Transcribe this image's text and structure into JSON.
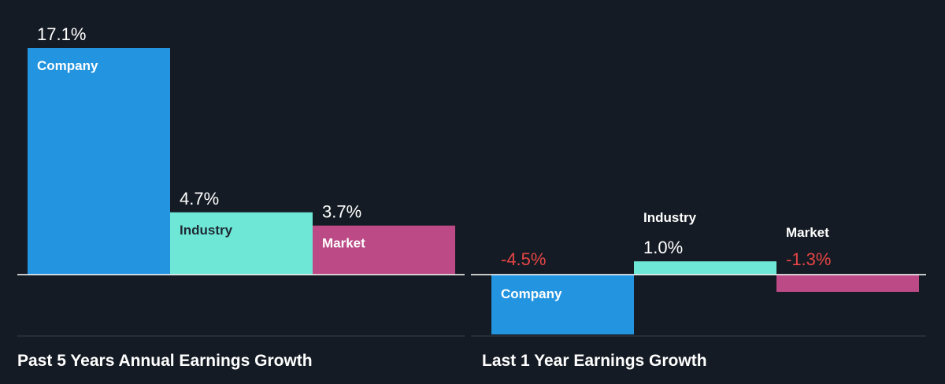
{
  "colors": {
    "background": "#151b24",
    "company": "#2394e0",
    "industry": "#6ee7d6",
    "market": "#bb4a86",
    "negative_text": "#e64545",
    "positive_text": "#ffffff",
    "axis": "#ffffff",
    "divider": "#3a414b"
  },
  "chart_data": [
    {
      "type": "bar",
      "title": "Past 5 Years Annual Earnings Growth",
      "categories": [
        "Company",
        "Industry",
        "Market"
      ],
      "values": [
        17.1,
        4.7,
        3.7
      ],
      "value_labels": [
        "17.1%",
        "4.7%",
        "3.7%"
      ],
      "ylim": [
        -6,
        17.1
      ],
      "grid": false,
      "legend": "none"
    },
    {
      "type": "bar",
      "title": "Last 1 Year Earnings Growth",
      "categories": [
        "Company",
        "Industry",
        "Market"
      ],
      "values": [
        -4.5,
        1.0,
        -1.3
      ],
      "value_labels": [
        "-4.5%",
        "1.0%",
        "-1.3%"
      ],
      "ylim": [
        -4.5,
        10
      ],
      "grid": false,
      "legend": "none"
    }
  ]
}
